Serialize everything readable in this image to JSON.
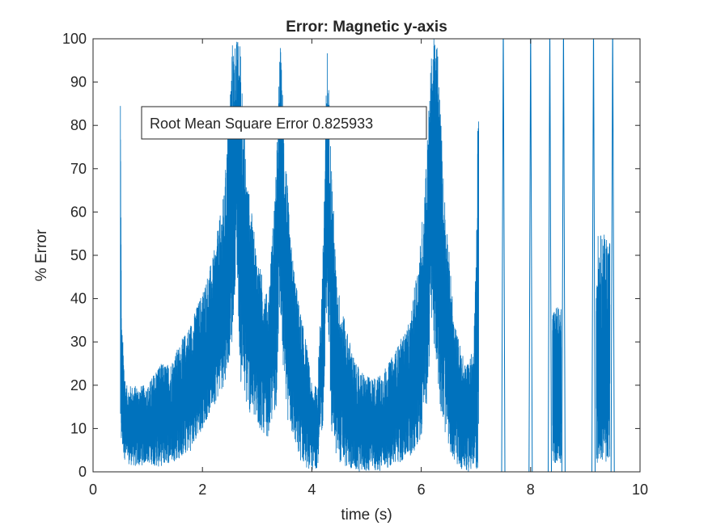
{
  "chart_data": {
    "type": "line",
    "title": "Error: Magnetic y-axis",
    "xlabel": "time (s)",
    "ylabel": "% Error",
    "xlim": [
      0,
      10
    ],
    "ylim": [
      0,
      100
    ],
    "xticks": [
      0,
      2,
      4,
      6,
      8,
      10
    ],
    "yticks": [
      0,
      10,
      20,
      30,
      40,
      50,
      60,
      70,
      80,
      90,
      100
    ],
    "grid": false,
    "series_color": "#0072BD",
    "annotation": "Root Mean Square Error 0.825933",
    "series": [
      {
        "envelope": {
          "t": [
            0.5,
            0.52,
            0.6,
            0.8,
            1.0,
            1.2,
            1.4,
            1.6,
            1.8,
            2.0,
            2.2,
            2.4,
            2.55,
            2.62,
            2.7,
            2.8,
            3.0,
            3.2,
            3.35,
            3.42,
            3.5,
            3.6,
            3.75,
            3.9,
            4.0,
            4.1,
            4.2,
            4.28,
            4.35,
            4.45,
            4.6,
            4.8,
            5.0,
            5.2,
            5.4,
            5.6,
            5.8,
            6.0,
            6.1,
            6.2,
            6.3,
            6.4,
            6.6,
            6.8,
            6.95,
            7.0,
            7.05
          ],
          "high": [
            100,
            35,
            20,
            20,
            20,
            25,
            25,
            30,
            35,
            42,
            50,
            65,
            100,
            100,
            100,
            70,
            50,
            40,
            70,
            100,
            80,
            55,
            40,
            30,
            20,
            20,
            50,
            100,
            75,
            45,
            35,
            25,
            22,
            22,
            25,
            30,
            35,
            55,
            75,
            100,
            100,
            70,
            35,
            25,
            28,
            50,
            100
          ],
          "low": [
            0,
            5,
            2,
            1,
            2,
            1,
            2,
            3,
            5,
            10,
            15,
            20,
            30,
            50,
            20,
            15,
            10,
            8,
            15,
            40,
            15,
            10,
            3,
            1,
            0,
            1,
            10,
            40,
            10,
            3,
            1,
            0,
            0,
            0,
            1,
            2,
            3,
            8,
            15,
            35,
            20,
            10,
            2,
            0,
            0,
            0,
            0
          ]
        },
        "spikes": [
          {
            "t": 7.5,
            "peak": 100,
            "floor": 0
          },
          {
            "t": 8.0,
            "peak": 100,
            "floor": 0
          },
          {
            "t": 8.35,
            "peak": 100,
            "floor": 0
          },
          {
            "t": 8.6,
            "peak": 100,
            "floor": 0
          },
          {
            "t": 9.15,
            "peak": 100,
            "floor": 0
          },
          {
            "t": 9.5,
            "peak": 100,
            "floor": 0
          }
        ],
        "noise_bands": [
          {
            "t0": 8.4,
            "t1": 8.56,
            "low": 2,
            "high": 38
          },
          {
            "t0": 9.2,
            "t1": 9.45,
            "low": 2,
            "high": 55
          }
        ]
      }
    ]
  }
}
